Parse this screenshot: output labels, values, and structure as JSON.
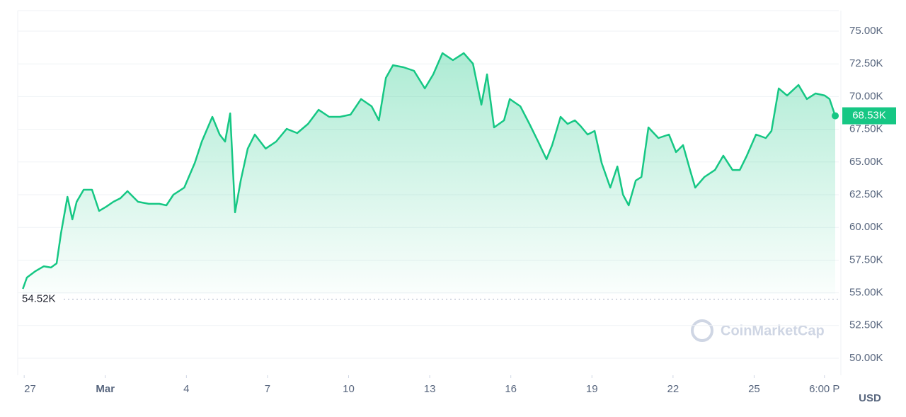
{
  "chart_data": {
    "type": "area-line",
    "x": [
      -0.05,
      0.1,
      0.42,
      0.73,
      0.99,
      1.2,
      1.36,
      1.6,
      1.78,
      1.94,
      2.2,
      2.51,
      2.77,
      3.04,
      3.3,
      3.56,
      3.82,
      4.21,
      4.61,
      5.0,
      5.26,
      5.52,
      5.92,
      6.31,
      6.57,
      6.96,
      7.23,
      7.43,
      7.62,
      7.8,
      8.01,
      8.27,
      8.53,
      8.93,
      9.32,
      9.71,
      10.1,
      10.5,
      10.89,
      11.28,
      11.68,
      12.07,
      12.46,
      12.85,
      13.12,
      13.38,
      13.64,
      14.03,
      14.42,
      14.82,
      15.13,
      15.47,
      15.86,
      16.26,
      16.6,
      16.91,
      17.12,
      17.38,
      17.75,
      17.96,
      18.35,
      18.69,
      19.01,
      19.32,
      19.53,
      19.84,
      20.1,
      20.37,
      20.58,
      20.84,
      21.1,
      21.36,
      21.68,
      21.94,
      22.15,
      22.36,
      22.62,
      22.83,
      23.09,
      23.46,
      23.85,
      24.11,
      24.37,
      24.63,
      24.82,
      25.16,
      25.55,
      25.86,
      26.2,
      26.47,
      26.73,
      27.07,
      27.43,
      27.64,
      27.91,
      28.22,
      28.64,
      28.95,
      29.27,
      29.61,
      29.79,
      30.0
    ],
    "values": [
      55300,
      56170,
      56660,
      57030,
      56930,
      57250,
      59530,
      62340,
      60610,
      61960,
      62880,
      62880,
      61260,
      61590,
      61960,
      62230,
      62770,
      61960,
      61800,
      61800,
      61690,
      62500,
      63040,
      64930,
      66560,
      68450,
      67100,
      66560,
      68720,
      61150,
      63580,
      66020,
      67100,
      66020,
      66560,
      67530,
      67210,
      67910,
      68990,
      68450,
      68450,
      68620,
      69810,
      69260,
      68180,
      71430,
      72400,
      72240,
      71970,
      70620,
      71700,
      73320,
      72780,
      73320,
      72510,
      69380,
      71700,
      67640,
      68180,
      69810,
      69260,
      67910,
      66560,
      65210,
      66290,
      68450,
      67910,
      68180,
      67750,
      67100,
      67370,
      64930,
      63040,
      64660,
      62500,
      61690,
      63580,
      63850,
      67640,
      66830,
      67100,
      65750,
      66290,
      64390,
      63040,
      63850,
      64390,
      65480,
      64390,
      64390,
      65480,
      67100,
      66830,
      67370,
      70620,
      70080,
      70890,
      69810,
      70240,
      70080,
      69810,
      68530
    ],
    "color": "#16c784",
    "xlim": [
      -0.24,
      30.13
    ],
    "ylim": [
      48700,
      76570
    ],
    "xticks": [
      {
        "value": 0,
        "label": "27"
      },
      {
        "value": 3,
        "label": "Mar"
      },
      {
        "value": 6,
        "label": "4"
      },
      {
        "value": 9,
        "label": "7"
      },
      {
        "value": 12,
        "label": "10"
      },
      {
        "value": 15,
        "label": "13"
      },
      {
        "value": 18,
        "label": "16"
      },
      {
        "value": 21,
        "label": "19"
      },
      {
        "value": 24,
        "label": "22"
      },
      {
        "value": 27,
        "label": "25"
      },
      {
        "value": 29.6,
        "label": "6:00 P"
      }
    ],
    "yticks": [
      {
        "value": 50000,
        "label": "50.00K"
      },
      {
        "value": 52500,
        "label": "52.50K"
      },
      {
        "value": 55000,
        "label": "55.00K"
      },
      {
        "value": 57500,
        "label": "57.50K"
      },
      {
        "value": 60000,
        "label": "60.00K"
      },
      {
        "value": 62500,
        "label": "62.50K"
      },
      {
        "value": 65000,
        "label": "65.00K"
      },
      {
        "value": 67500,
        "label": "67.50K"
      },
      {
        "value": 70000,
        "label": "70.00K"
      },
      {
        "value": 72500,
        "label": "72.50K"
      },
      {
        "value": 75000,
        "label": "75.00K"
      }
    ],
    "grid": true,
    "min_marker": {
      "value": 54520,
      "label": "54.52K"
    },
    "last_marker": {
      "value": 68530,
      "label": "68.53K"
    },
    "currency": "USD",
    "watermark": "CoinMarketCap"
  }
}
